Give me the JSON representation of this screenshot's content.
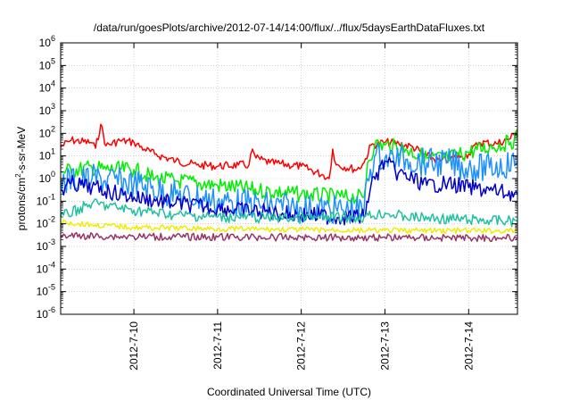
{
  "chart_data": {
    "type": "line",
    "title": "/data/run/goesPlots/archive/2012-07-14/14:00/flux/../flux/5daysEarthDataFluxes.txt",
    "xlabel": "Coordinated Universal Time (UTC)",
    "ylabel": {
      "prefix": "protons/cm",
      "sup": "2",
      "suffix": "-s-sr-MeV"
    },
    "yscale": "log",
    "ylim": [
      1e-06,
      1000000.0
    ],
    "xlim": [
      "2012-07-09T03:00Z",
      "2012-07-14T14:00Z"
    ],
    "grid": true,
    "y_ticks": [
      {
        "value": 1e-06,
        "base": "10",
        "exp": "-6"
      },
      {
        "value": 1e-05,
        "base": "10",
        "exp": "-5"
      },
      {
        "value": 0.0001,
        "base": "10",
        "exp": "-4"
      },
      {
        "value": 0.001,
        "base": "10",
        "exp": "-3"
      },
      {
        "value": 0.01,
        "base": "10",
        "exp": "-2"
      },
      {
        "value": 0.1,
        "base": "10",
        "exp": "-1"
      },
      {
        "value": 1,
        "base": "10",
        "exp": "0"
      },
      {
        "value": 10,
        "base": "10",
        "exp": "1"
      },
      {
        "value": 100,
        "base": "10",
        "exp": "2"
      },
      {
        "value": 1000,
        "base": "10",
        "exp": "3"
      },
      {
        "value": 10000,
        "base": "10",
        "exp": "4"
      },
      {
        "value": 100000,
        "base": "10",
        "exp": "5"
      },
      {
        "value": 1000000,
        "base": "10",
        "exp": "6"
      }
    ],
    "x_ticks": [
      {
        "value": "2012-07-10T00:00Z",
        "label": "2012-7-10"
      },
      {
        "value": "2012-07-11T00:00Z",
        "label": "2012-7-11"
      },
      {
        "value": "2012-07-12T00:00Z",
        "label": "2012-7-12"
      },
      {
        "value": "2012-07-13T00:00Z",
        "label": "2012-7-13"
      },
      {
        "value": "2012-07-14T00:00Z",
        "label": "2012-7-14"
      }
    ],
    "series": [
      {
        "color": "#ff0000",
        "points": [
          [
            "2012-07-09T03:00Z",
            25
          ],
          [
            "2012-07-09T06:00Z",
            50
          ],
          [
            "2012-07-09T12:00Z",
            38
          ],
          [
            "2012-07-09T13:00Z",
            22
          ],
          [
            "2012-07-09T14:30Z",
            250
          ],
          [
            "2012-07-09T16:00Z",
            28
          ],
          [
            "2012-07-09T20:00Z",
            48
          ],
          [
            "2012-07-10T00:00Z",
            40
          ],
          [
            "2012-07-10T03:00Z",
            20
          ],
          [
            "2012-07-10T06:00Z",
            12
          ],
          [
            "2012-07-10T12:00Z",
            6
          ],
          [
            "2012-07-10T18:00Z",
            4
          ],
          [
            "2012-07-11T00:00Z",
            3.5
          ],
          [
            "2012-07-11T06:00Z",
            4
          ],
          [
            "2012-07-11T09:00Z",
            4
          ],
          [
            "2012-07-11T10:00Z",
            20
          ],
          [
            "2012-07-11T11:00Z",
            8
          ],
          [
            "2012-07-11T15:00Z",
            5
          ],
          [
            "2012-07-12T00:00Z",
            3.5
          ],
          [
            "2012-07-12T06:00Z",
            1.5
          ],
          [
            "2012-07-12T08:00Z",
            1
          ],
          [
            "2012-07-12T09:00Z",
            20
          ],
          [
            "2012-07-12T10:00Z",
            4
          ],
          [
            "2012-07-12T16:00Z",
            2.5
          ],
          [
            "2012-07-12T18:00Z",
            5
          ],
          [
            "2012-07-12T20:00Z",
            30
          ],
          [
            "2012-07-13T00:00Z",
            40
          ],
          [
            "2012-07-13T04:00Z",
            35
          ],
          [
            "2012-07-13T08:00Z",
            25
          ],
          [
            "2012-07-13T12:00Z",
            10
          ],
          [
            "2012-07-13T16:00Z",
            6
          ],
          [
            "2012-07-13T22:00Z",
            10
          ],
          [
            "2012-07-14T00:00Z",
            12
          ],
          [
            "2012-07-14T03:00Z",
            40
          ],
          [
            "2012-07-14T08:00Z",
            35
          ],
          [
            "2012-07-14T12:00Z",
            60
          ],
          [
            "2012-07-14T14:00Z",
            150
          ]
        ]
      },
      {
        "color": "#00ee00",
        "points": [
          [
            "2012-07-09T03:00Z",
            2
          ],
          [
            "2012-07-09T12:00Z",
            3
          ],
          [
            "2012-07-09T16:00Z",
            2.5
          ],
          [
            "2012-07-10T00:00Z",
            2.5
          ],
          [
            "2012-07-10T06:00Z",
            1
          ],
          [
            "2012-07-10T12:00Z",
            0.8
          ],
          [
            "2012-07-11T00:00Z",
            0.5
          ],
          [
            "2012-07-11T12:00Z",
            0.3
          ],
          [
            "2012-07-12T00:00Z",
            0.2
          ],
          [
            "2012-07-12T12:00Z",
            0.15
          ],
          [
            "2012-07-12T18:00Z",
            0.15
          ],
          [
            "2012-07-12T19:00Z",
            5
          ],
          [
            "2012-07-12T21:00Z",
            30
          ],
          [
            "2012-07-13T00:00Z",
            30
          ],
          [
            "2012-07-13T06:00Z",
            20
          ],
          [
            "2012-07-13T12:00Z",
            8
          ],
          [
            "2012-07-13T18:00Z",
            8
          ],
          [
            "2012-07-14T00:00Z",
            15
          ],
          [
            "2012-07-14T06:00Z",
            25
          ],
          [
            "2012-07-14T12:00Z",
            40
          ],
          [
            "2012-07-14T14:00Z",
            70
          ]
        ]
      },
      {
        "color": "#1e90ff",
        "points": [
          [
            "2012-07-09T03:00Z",
            0.8
          ],
          [
            "2012-07-09T12:00Z",
            1
          ],
          [
            "2012-07-10T00:00Z",
            0.6
          ],
          [
            "2012-07-10T12:00Z",
            0.2
          ],
          [
            "2012-07-11T00:00Z",
            0.1
          ],
          [
            "2012-07-11T12:00Z",
            0.07
          ],
          [
            "2012-07-12T00:00Z",
            0.05
          ],
          [
            "2012-07-12T12:00Z",
            0.04
          ],
          [
            "2012-07-12T18:00Z",
            0.04
          ],
          [
            "2012-07-12T19:00Z",
            1
          ],
          [
            "2012-07-12T21:00Z",
            10
          ],
          [
            "2012-07-13T00:00Z",
            8
          ],
          [
            "2012-07-13T06:00Z",
            7
          ],
          [
            "2012-07-13T12:00Z",
            5
          ],
          [
            "2012-07-13T18:00Z",
            5
          ],
          [
            "2012-07-14T00:00Z",
            3
          ],
          [
            "2012-07-14T06:00Z",
            3
          ],
          [
            "2012-07-14T14:00Z",
            5
          ]
        ]
      },
      {
        "color": "#0000cc",
        "points": [
          [
            "2012-07-09T03:00Z",
            0.3
          ],
          [
            "2012-07-09T06:00Z",
            0.6
          ],
          [
            "2012-07-09T12:00Z",
            0.4
          ],
          [
            "2012-07-10T00:00Z",
            0.15
          ],
          [
            "2012-07-10T12:00Z",
            0.08
          ],
          [
            "2012-07-11T00:00Z",
            0.05
          ],
          [
            "2012-07-11T12:00Z",
            0.035
          ],
          [
            "2012-07-12T00:00Z",
            0.025
          ],
          [
            "2012-07-12T12:00Z",
            0.02
          ],
          [
            "2012-07-12T18:00Z",
            0.02
          ],
          [
            "2012-07-12T20:00Z",
            0.5
          ],
          [
            "2012-07-13T00:00Z",
            6
          ],
          [
            "2012-07-13T03:00Z",
            2
          ],
          [
            "2012-07-13T12:00Z",
            0.5
          ],
          [
            "2012-07-13T18:00Z",
            0.6
          ],
          [
            "2012-07-14T00:00Z",
            0.4
          ],
          [
            "2012-07-14T06:00Z",
            0.3
          ],
          [
            "2012-07-14T14:00Z",
            0.2
          ]
        ]
      },
      {
        "color": "#20c0a0",
        "points": [
          [
            "2012-07-09T03:00Z",
            0.02
          ],
          [
            "2012-07-09T12:00Z",
            0.08
          ],
          [
            "2012-07-10T00:00Z",
            0.04
          ],
          [
            "2012-07-10T12:00Z",
            0.025
          ],
          [
            "2012-07-11T00:00Z",
            0.02
          ],
          [
            "2012-07-12T00:00Z",
            0.018
          ],
          [
            "2012-07-12T18:00Z",
            0.02
          ],
          [
            "2012-07-13T00:00Z",
            0.03
          ],
          [
            "2012-07-13T06:00Z",
            0.02
          ],
          [
            "2012-07-14T00:00Z",
            0.015
          ],
          [
            "2012-07-14T14:00Z",
            0.013
          ]
        ]
      },
      {
        "color": "#eeee00",
        "points": [
          [
            "2012-07-09T03:00Z",
            0.012
          ],
          [
            "2012-07-09T12:00Z",
            0.009
          ],
          [
            "2012-07-10T00:00Z",
            0.007
          ],
          [
            "2012-07-11T00:00Z",
            0.006
          ],
          [
            "2012-07-12T00:00Z",
            0.0055
          ],
          [
            "2012-07-13T00:00Z",
            0.005
          ],
          [
            "2012-07-14T00:00Z",
            0.005
          ],
          [
            "2012-07-14T14:00Z",
            0.0048
          ]
        ]
      },
      {
        "color": "#993366",
        "points": [
          [
            "2012-07-09T03:00Z",
            0.003
          ],
          [
            "2012-07-10T00:00Z",
            0.0027
          ],
          [
            "2012-07-11T00:00Z",
            0.0026
          ],
          [
            "2012-07-12T00:00Z",
            0.0025
          ],
          [
            "2012-07-13T00:00Z",
            0.0025
          ],
          [
            "2012-07-14T00:00Z",
            0.0024
          ],
          [
            "2012-07-14T14:00Z",
            0.0024
          ]
        ]
      }
    ]
  }
}
